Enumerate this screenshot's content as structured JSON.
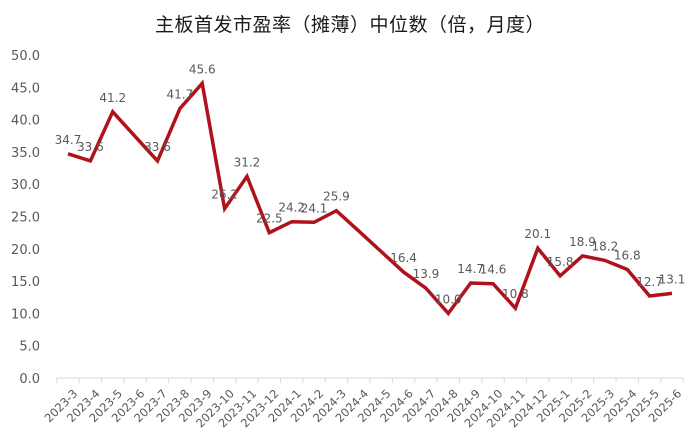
{
  "chart_data": {
    "type": "line",
    "title": "主板首发市盈率（摊薄）中位数（倍，月度）",
    "xlabel": "",
    "ylabel": "",
    "ylim": [
      0,
      50
    ],
    "yticks": [
      "0.0",
      "5.0",
      "10.0",
      "15.0",
      "20.0",
      "25.0",
      "30.0",
      "35.0",
      "40.0",
      "45.0",
      "50.0"
    ],
    "grid": false,
    "legend": null,
    "line_color": "#b0121b",
    "categories": [
      "2023-3",
      "2023-4",
      "2023-5",
      "2023-6",
      "2023-7",
      "2023-8",
      "2023-9",
      "2023-10",
      "2023-11",
      "2023-12",
      "2024-1",
      "2024-2",
      "2024-3",
      "2024-4",
      "2024-5",
      "2024-6",
      "2024-7",
      "2024-8",
      "2024-9",
      "2024-10",
      "2024-11",
      "2024-12",
      "2025-1",
      "2025-2",
      "2025-3",
      "2025-4",
      "2025-5",
      "2025-6"
    ],
    "series": [
      {
        "name": "主板首发市盈率（摊薄）中位数",
        "values": [
          34.7,
          33.6,
          41.2,
          null,
          33.6,
          41.7,
          45.6,
          26.2,
          31.2,
          22.5,
          24.2,
          24.1,
          25.9,
          null,
          null,
          16.4,
          13.9,
          10.0,
          14.7,
          14.6,
          10.8,
          20.1,
          15.8,
          18.9,
          18.2,
          16.8,
          12.7,
          13.1
        ],
        "labels": [
          "34.7",
          "33.6",
          "41.2",
          "",
          "33.6",
          "41.7",
          "45.6",
          "26.2",
          "31.2",
          "22.5",
          "24.2",
          "24.1",
          "25.9",
          "",
          "",
          "16.4",
          "13.9",
          "10.0",
          "14.7",
          "14.6",
          "10.8",
          "20.1",
          "15.8",
          "18.9",
          "18.2",
          "16.8",
          "12.7",
          "13.1"
        ]
      }
    ]
  }
}
